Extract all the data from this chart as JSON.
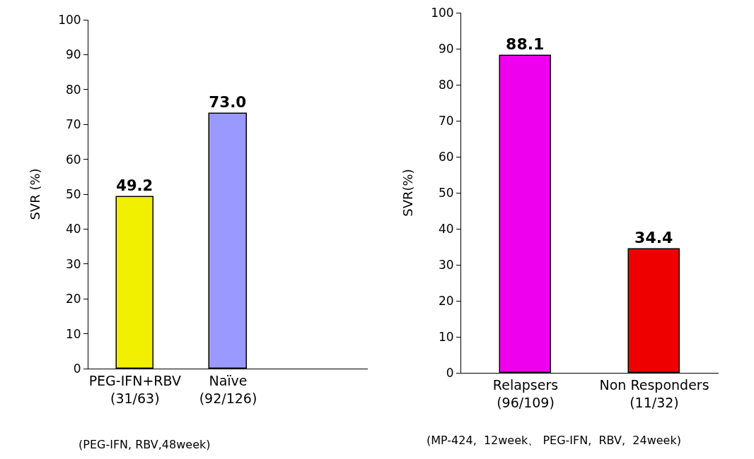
{
  "chart_data": [
    {
      "type": "bar",
      "ylabel": "SVR (%)",
      "categories": [
        "PEG-IFN+RBV\n(31/63)",
        "Naïve\n(92/126)",
        null
      ],
      "colors": [
        "#f0f000",
        "#9999ff",
        "#ffffff"
      ],
      "values": [
        49.2,
        73.0,
        null
      ],
      "value_labels": [
        "49.2",
        "73.0",
        null
      ],
      "ylim": [
        0,
        100
      ],
      "yticks": [
        0,
        10,
        20,
        30,
        40,
        50,
        60,
        70,
        80,
        90,
        100
      ],
      "grid": false,
      "annotations": [
        "(PEG-IFN, RBV,48week)"
      ]
    },
    {
      "type": "bar",
      "ylabel": "SVR(%)",
      "categories": [
        "Relapsers\n(96/109)",
        "Non Responders\n(11/32)"
      ],
      "colors": [
        "#ee00ee",
        "#ee0000"
      ],
      "values": [
        88.1,
        34.4
      ],
      "value_labels": [
        "88.1",
        "34.4"
      ],
      "ylim": [
        0,
        100
      ],
      "yticks": [
        0,
        10,
        20,
        30,
        40,
        50,
        60,
        70,
        80,
        90,
        100
      ],
      "grid": false,
      "annotations": [
        "(MP-424,  12week、 PEG-IFN,  RBV,  24week)"
      ]
    }
  ]
}
